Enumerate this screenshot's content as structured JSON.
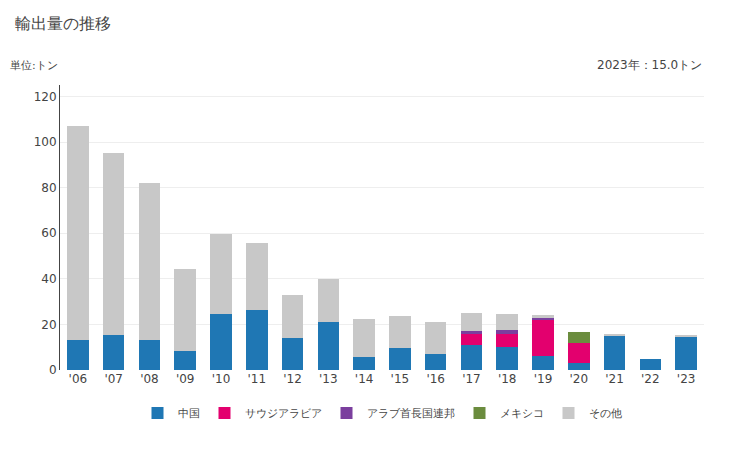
{
  "chart_data": {
    "type": "bar",
    "stacked": true,
    "title": "輸出量の推移",
    "ylabel": "単位:トン",
    "annotation": "2023年：15.0トン",
    "categories": [
      "'06",
      "'07",
      "'08",
      "'09",
      "'10",
      "'11",
      "'12",
      "'13",
      "'14",
      "'15",
      "'16",
      "'17",
      "'18",
      "'19",
      "'20",
      "'21",
      "'22",
      "'23"
    ],
    "series": [
      {
        "name": "中国",
        "color": "#1f77b4",
        "values": [
          13,
          15.5,
          13,
          8.5,
          24.5,
          26.5,
          14,
          21,
          5.5,
          9.5,
          7,
          11,
          10,
          6,
          3,
          15,
          5,
          14.5
        ]
      },
      {
        "name": "サウジアラビア",
        "color": "#e3006e",
        "values": [
          0,
          0,
          0,
          0,
          0,
          0,
          0,
          0,
          0,
          0,
          0,
          5,
          6,
          16,
          9,
          0,
          0,
          0
        ]
      },
      {
        "name": "アラブ首長国連邦",
        "color": "#7b3f9e",
        "values": [
          0,
          0,
          0,
          0,
          0,
          0,
          0,
          0,
          0,
          0,
          0,
          1,
          1.5,
          1,
          0,
          0,
          0,
          0
        ]
      },
      {
        "name": "メキシコ",
        "color": "#6b8c3e",
        "values": [
          0,
          0,
          0,
          0,
          0,
          0,
          0,
          0,
          0,
          0,
          0,
          0,
          0,
          0,
          4.5,
          0,
          0,
          0
        ]
      },
      {
        "name": "その他",
        "color": "#c8c8c8",
        "values": [
          94,
          79.5,
          69,
          36,
          35,
          29,
          19,
          19,
          17,
          14,
          14,
          8,
          7,
          1,
          0,
          1,
          0,
          0.5
        ]
      }
    ],
    "ylim": [
      0,
      125
    ],
    "yticks": [
      0,
      20,
      40,
      60,
      80,
      100,
      120
    ],
    "grid": true,
    "legend": "bottom"
  }
}
